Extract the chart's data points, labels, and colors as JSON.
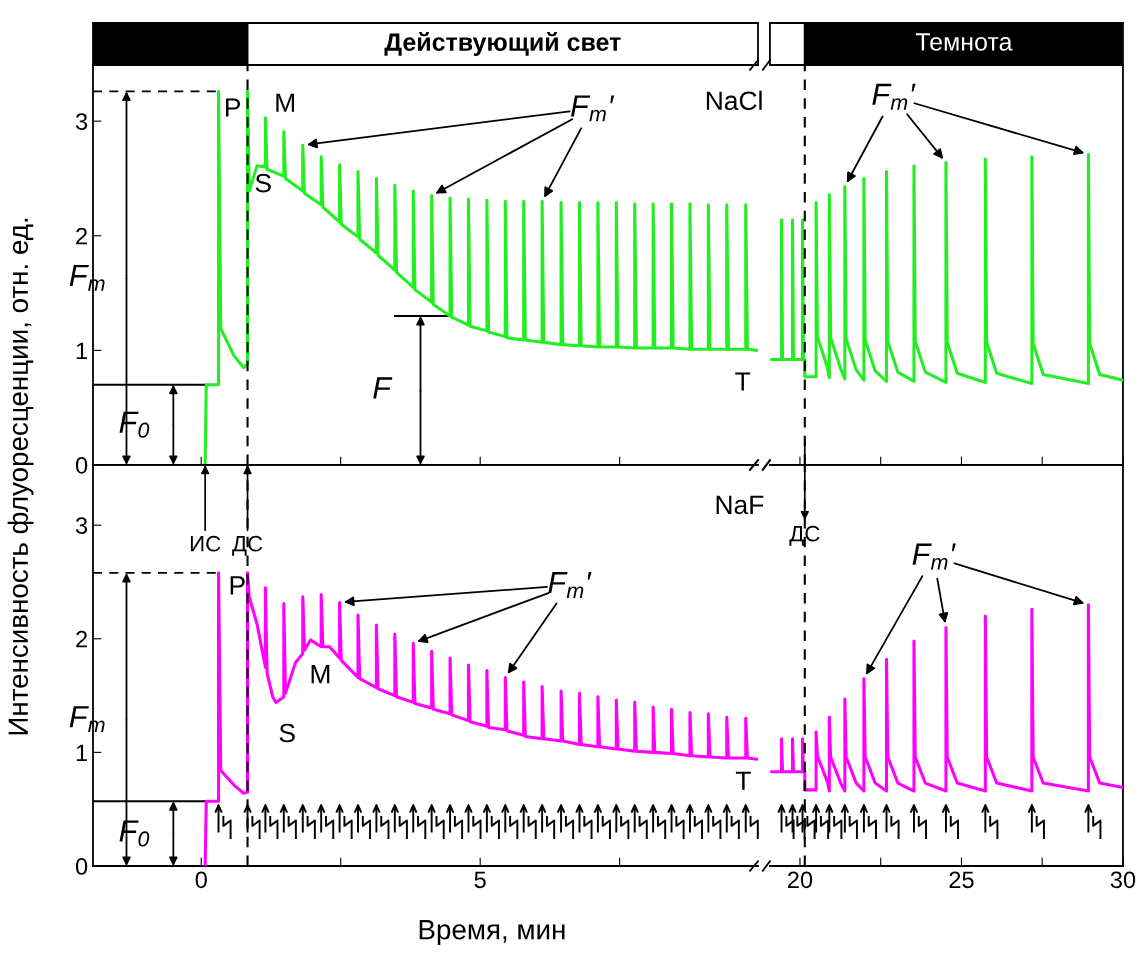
{
  "chart_data": [
    {
      "type": "line",
      "ylabel": "Интенсивность флуоресценции, отн. ед.",
      "xlim": [
        -1.94,
        9.98
      ],
      "xticks": [
        0,
        {
          "value": 2.5,
          "label": null
        },
        5,
        {
          "value": 7.5,
          "label": null
        }
      ],
      "ylim": [
        0,
        3.49
      ],
      "yticks": [
        0,
        1,
        2,
        3
      ],
      "tick_labels": "y",
      "series": [
        {
          "color": "#22ee22",
          "x": [
            0.07,
            0.09,
            0.31,
            0.31,
            0.35,
            0.59,
            0.76,
            0.83,
            0.83,
            0.86,
            1.0,
            1.15,
            1.15,
            1.18,
            1.48,
            1.48,
            1.51,
            1.82,
            1.82,
            1.85,
            2.15,
            2.15,
            2.18,
            2.48,
            2.48,
            2.51,
            2.81,
            2.81,
            2.84,
            3.14,
            3.14,
            3.17,
            3.47,
            3.47,
            3.5,
            3.8,
            3.8,
            3.83,
            4.13,
            4.13,
            4.16,
            4.46,
            4.46,
            4.49,
            4.79,
            4.79,
            4.82,
            5.12,
            5.12,
            5.15,
            5.45,
            5.45,
            5.48,
            5.78,
            5.78,
            5.81,
            6.11,
            6.11,
            6.14,
            6.45,
            6.45,
            6.48,
            6.78,
            6.78,
            6.81,
            7.11,
            7.11,
            7.14,
            7.44,
            7.44,
            7.47,
            7.77,
            7.77,
            7.8,
            8.1,
            8.1,
            8.13,
            8.43,
            8.43,
            8.46,
            8.76,
            8.76,
            8.79,
            9.09,
            9.09,
            9.12,
            9.42,
            9.42,
            9.45,
            9.76,
            9.76,
            9.79,
            9.96
          ],
          "values": [
            0,
            0.7,
            0.7,
            3.26,
            1.19,
            0.95,
            0.85,
            0.88,
            3.26,
            2.39,
            2.61,
            2.6,
            3.03,
            2.58,
            2.52,
            2.91,
            2.5,
            2.39,
            2.79,
            2.37,
            2.27,
            2.69,
            2.25,
            2.12,
            2.62,
            2.1,
            1.99,
            2.56,
            1.97,
            1.85,
            2.5,
            1.83,
            1.7,
            2.44,
            1.68,
            1.55,
            2.39,
            1.53,
            1.42,
            2.35,
            1.4,
            1.3,
            2.33,
            1.29,
            1.22,
            2.32,
            1.21,
            1.17,
            2.31,
            1.16,
            1.12,
            2.3,
            1.11,
            1.09,
            2.3,
            1.09,
            1.07,
            2.3,
            1.07,
            1.05,
            2.29,
            1.05,
            1.04,
            2.29,
            1.04,
            1.03,
            2.29,
            1.03,
            1.03,
            2.29,
            1.03,
            1.02,
            2.28,
            1.02,
            1.02,
            2.28,
            1.02,
            1.02,
            2.28,
            1.02,
            1.01,
            2.28,
            1.01,
            1.01,
            2.27,
            1.01,
            1.01,
            2.27,
            1.01,
            1.01,
            2.27,
            1.01,
            1.0
          ]
        }
      ],
      "ref_lines": [
        {
          "axis": "x",
          "value": 0.83,
          "color": "#000000",
          "line_style": "dashed"
        },
        {
          "axis": "y",
          "value": 3.26,
          "color": "#000000",
          "line_style": "dashed"
        },
        {
          "axis": "y",
          "value": 0.7,
          "color": "#000000",
          "line_style": "solid"
        },
        {
          "axis": "y",
          "value": 1.3,
          "color": "#000000",
          "line_style": "solid"
        }
      ],
      "annotations": [
        "P",
        "M",
        "S",
        "F$_{m}$′",
        "NaCl",
        "T",
        "Действующий свет",
        {
          "text": "F$_{m}$",
          "x": -1.34,
          "y": 3.26
        },
        {
          "text": "F$_{0}$",
          "x": -0.5,
          "y": 0.7
        },
        {
          "text": "F",
          "x": 3.93,
          "y": 1.3
        }
      ]
    },
    {
      "type": "line",
      "xlim": [
        19.07,
        30
      ],
      "xticks": [
        20,
        {
          "value": 22.5,
          "label": null
        },
        25,
        {
          "value": 27.5,
          "label": null
        },
        30
      ],
      "ylim": [
        0,
        3.49
      ],
      "tick_labels": false,
      "series": [
        {
          "color": "#22ee22",
          "x": [
            19.12,
            19.43,
            19.43,
            19.46,
            19.77,
            19.77,
            19.8,
            20.08,
            20.08,
            20.11,
            20.15,
            20.15,
            20.5,
            20.5,
            20.54,
            20.85,
            20.91,
            20.91,
            20.95,
            21.26,
            21.39,
            21.39,
            21.43,
            21.74,
            21.98,
            21.98,
            22.02,
            22.33,
            22.68,
            22.68,
            22.72,
            23.03,
            23.53,
            23.53,
            23.57,
            23.88,
            24.52,
            24.52,
            24.56,
            24.87,
            25.74,
            25.74,
            25.78,
            26.09,
            27.18,
            27.18,
            27.22,
            27.53,
            28.93,
            28.93,
            28.97,
            29.28,
            30
          ],
          "values": [
            0.92,
            0.92,
            2.14,
            0.92,
            0.92,
            2.14,
            0.92,
            0.92,
            2.14,
            0.92,
            0.92,
            0.77,
            0.77,
            2.29,
            1.12,
            0.85,
            0.76,
            2.36,
            1.11,
            0.84,
            0.75,
            2.43,
            1.1,
            0.83,
            0.74,
            2.5,
            1.09,
            0.82,
            0.73,
            2.56,
            1.08,
            0.81,
            0.73,
            2.61,
            1.08,
            0.81,
            0.72,
            2.64,
            1.07,
            0.8,
            0.72,
            2.67,
            1.07,
            0.8,
            0.71,
            2.69,
            1.06,
            0.79,
            0.71,
            2.71,
            1.06,
            0.79,
            0.74
          ]
        }
      ],
      "ref_lines": [
        {
          "axis": "x",
          "value": 20.15,
          "color": "#000000",
          "line_style": "dashed"
        }
      ],
      "annotations": [
        "F$_{m}$′",
        "Темнота"
      ]
    },
    {
      "type": "line",
      "xlabel": "Время, мин",
      "xlim": [
        -1.94,
        9.98
      ],
      "xticks": [
        0,
        {
          "value": 2.5,
          "label": null
        },
        5,
        {
          "value": 7.5,
          "label": null
        }
      ],
      "ylim": [
        0,
        3.53
      ],
      "yticks": [
        0,
        1,
        2,
        3
      ],
      "series": [
        {
          "color": "#ff00ff",
          "x": [
            0.07,
            0.09,
            0.31,
            0.31,
            0.35,
            0.59,
            0.76,
            0.83,
            0.83,
            0.86,
            1.0,
            1.15,
            1.15,
            1.18,
            1.28,
            1.34,
            1.48,
            1.48,
            1.51,
            1.69,
            1.82,
            1.82,
            1.85,
            1.96,
            2.15,
            2.15,
            2.18,
            2.3,
            2.48,
            2.48,
            2.51,
            2.81,
            2.81,
            2.84,
            3.14,
            3.14,
            3.17,
            3.47,
            3.47,
            3.5,
            3.8,
            3.8,
            3.83,
            4.13,
            4.13,
            4.16,
            4.46,
            4.46,
            4.49,
            4.79,
            4.79,
            4.82,
            5.12,
            5.12,
            5.15,
            5.45,
            5.45,
            5.48,
            5.78,
            5.78,
            5.81,
            6.11,
            6.11,
            6.14,
            6.45,
            6.45,
            6.48,
            6.78,
            6.78,
            6.81,
            7.11,
            7.11,
            7.14,
            7.44,
            7.44,
            7.47,
            7.77,
            7.77,
            7.8,
            8.1,
            8.1,
            8.13,
            8.43,
            8.43,
            8.46,
            8.76,
            8.76,
            8.79,
            9.09,
            9.09,
            9.12,
            9.42,
            9.42,
            9.45,
            9.76,
            9.76,
            9.79,
            9.96
          ],
          "values": [
            0,
            0.57,
            0.57,
            2.58,
            0.84,
            0.71,
            0.64,
            0.65,
            2.58,
            2.37,
            2.13,
            1.75,
            2.45,
            1.7,
            1.49,
            1.44,
            1.49,
            2.31,
            1.52,
            1.79,
            1.87,
            2.37,
            1.9,
            1.99,
            1.93,
            2.39,
            1.93,
            1.93,
            1.83,
            2.32,
            1.81,
            1.66,
            2.21,
            1.65,
            1.57,
            2.12,
            1.56,
            1.5,
            2.04,
            1.49,
            1.44,
            1.96,
            1.43,
            1.39,
            1.89,
            1.38,
            1.34,
            1.83,
            1.33,
            1.28,
            1.77,
            1.27,
            1.23,
            1.72,
            1.22,
            1.2,
            1.66,
            1.19,
            1.15,
            1.62,
            1.14,
            1.12,
            1.58,
            1.12,
            1.1,
            1.54,
            1.1,
            1.07,
            1.52,
            1.07,
            1.05,
            1.49,
            1.05,
            1.03,
            1.46,
            1.03,
            1.01,
            1.44,
            1.01,
            1.0,
            1.4,
            1.0,
            0.99,
            1.38,
            0.99,
            0.97,
            1.35,
            0.97,
            0.96,
            1.34,
            0.96,
            0.95,
            1.31,
            0.95,
            0.95,
            1.3,
            0.95,
            0.94
          ]
        }
      ],
      "ref_lines": [
        {
          "axis": "x",
          "value": 0.83,
          "color": "#000000",
          "line_style": "dashed"
        },
        {
          "axis": "y",
          "value": 2.58,
          "color": "#000000",
          "line_style": "dashed"
        },
        {
          "axis": "y",
          "value": 0.57,
          "color": "#000000",
          "line_style": "solid"
        }
      ],
      "annotations": [
        "P",
        "M",
        "S",
        "F$_{m}$′",
        "NaF",
        "T",
        "ИС",
        {
          "text": "ДС",
          "x": 0.83,
          "y": 3.53
        },
        {
          "text": "F$_{m}$",
          "x": -1.34,
          "y": 2.58
        },
        {
          "text": "F$_{0}$",
          "x": -0.5,
          "y": 0.57
        }
      ]
    },
    {
      "type": "line",
      "xlim": [
        19.07,
        30
      ],
      "xticks": [
        20,
        {
          "value": 22.5,
          "label": null
        },
        25,
        {
          "value": 27.5,
          "label": null
        },
        30
      ],
      "ylim": [
        0,
        3.53
      ],
      "tick_labels": "x",
      "series": [
        {
          "color": "#ff00ff",
          "x": [
            19.12,
            19.43,
            19.43,
            19.46,
            19.77,
            19.77,
            19.8,
            20.08,
            20.08,
            20.11,
            20.15,
            20.15,
            20.5,
            20.5,
            20.54,
            20.85,
            20.91,
            20.91,
            20.95,
            21.26,
            21.39,
            21.39,
            21.43,
            21.74,
            21.98,
            21.98,
            22.02,
            22.33,
            22.68,
            22.68,
            22.72,
            23.03,
            23.53,
            23.53,
            23.57,
            23.88,
            24.52,
            24.52,
            24.56,
            24.87,
            25.74,
            25.74,
            25.78,
            26.09,
            27.18,
            27.18,
            27.22,
            27.53,
            28.93,
            28.93,
            28.97,
            29.28,
            30
          ],
          "values": [
            0.83,
            0.83,
            1.12,
            0.83,
            0.83,
            1.12,
            0.83,
            0.83,
            1.12,
            0.83,
            0.83,
            0.67,
            0.67,
            1.18,
            0.97,
            0.74,
            0.66,
            1.31,
            0.96,
            0.73,
            0.66,
            1.47,
            0.96,
            0.73,
            0.66,
            1.65,
            0.96,
            0.73,
            0.66,
            1.82,
            0.96,
            0.73,
            0.66,
            1.98,
            0.96,
            0.73,
            0.66,
            2.1,
            0.96,
            0.73,
            0.66,
            2.2,
            0.96,
            0.73,
            0.66,
            2.26,
            0.96,
            0.73,
            0.66,
            2.3,
            0.96,
            0.73,
            0.69
          ]
        }
      ],
      "ref_lines": [
        {
          "axis": "x",
          "value": 20.15,
          "color": "#000000",
          "line_style": "dashed"
        }
      ],
      "annotations": [
        "ДС",
        "F$_{m}$′"
      ]
    }
  ]
}
